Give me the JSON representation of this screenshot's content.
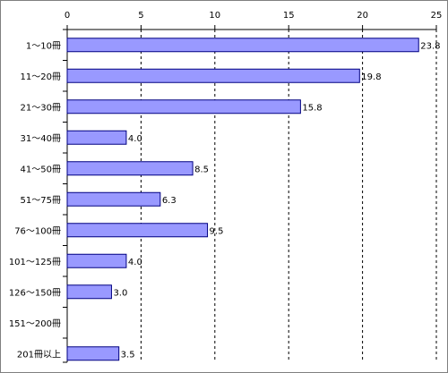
{
  "chart_data": {
    "type": "bar",
    "orientation": "horizontal",
    "categories": [
      "1～10冊",
      "11～20冊",
      "21～30冊",
      "31～40冊",
      "41～50冊",
      "51～75冊",
      "76～100冊",
      "101～125冊",
      "126～150冊",
      "151～200冊",
      "201冊以上"
    ],
    "values": [
      23.8,
      19.8,
      15.8,
      4.0,
      8.5,
      6.3,
      9.5,
      4.0,
      3.0,
      null,
      3.5
    ],
    "value_labels": [
      "23.8",
      "19.8",
      "15.8",
      "4.0",
      "8.5",
      "6.3",
      "9.5",
      "4.0",
      "3.0",
      "",
      "3.5"
    ],
    "xlim": [
      0,
      25
    ],
    "x_ticks": [
      0,
      5,
      10,
      15,
      20,
      25
    ],
    "x_tick_labels": [
      "0",
      "5",
      "10",
      "15",
      "20",
      "25"
    ],
    "x_axis_position": "top",
    "grid": "vertical dashed",
    "legend": "none",
    "title": "",
    "xlabel": "",
    "ylabel": "",
    "colors": {
      "bar_fill": "#9999ff",
      "bar_stroke": "#000080",
      "plot_border": "#808080",
      "grid": "#000000",
      "axis": "#000000"
    }
  }
}
